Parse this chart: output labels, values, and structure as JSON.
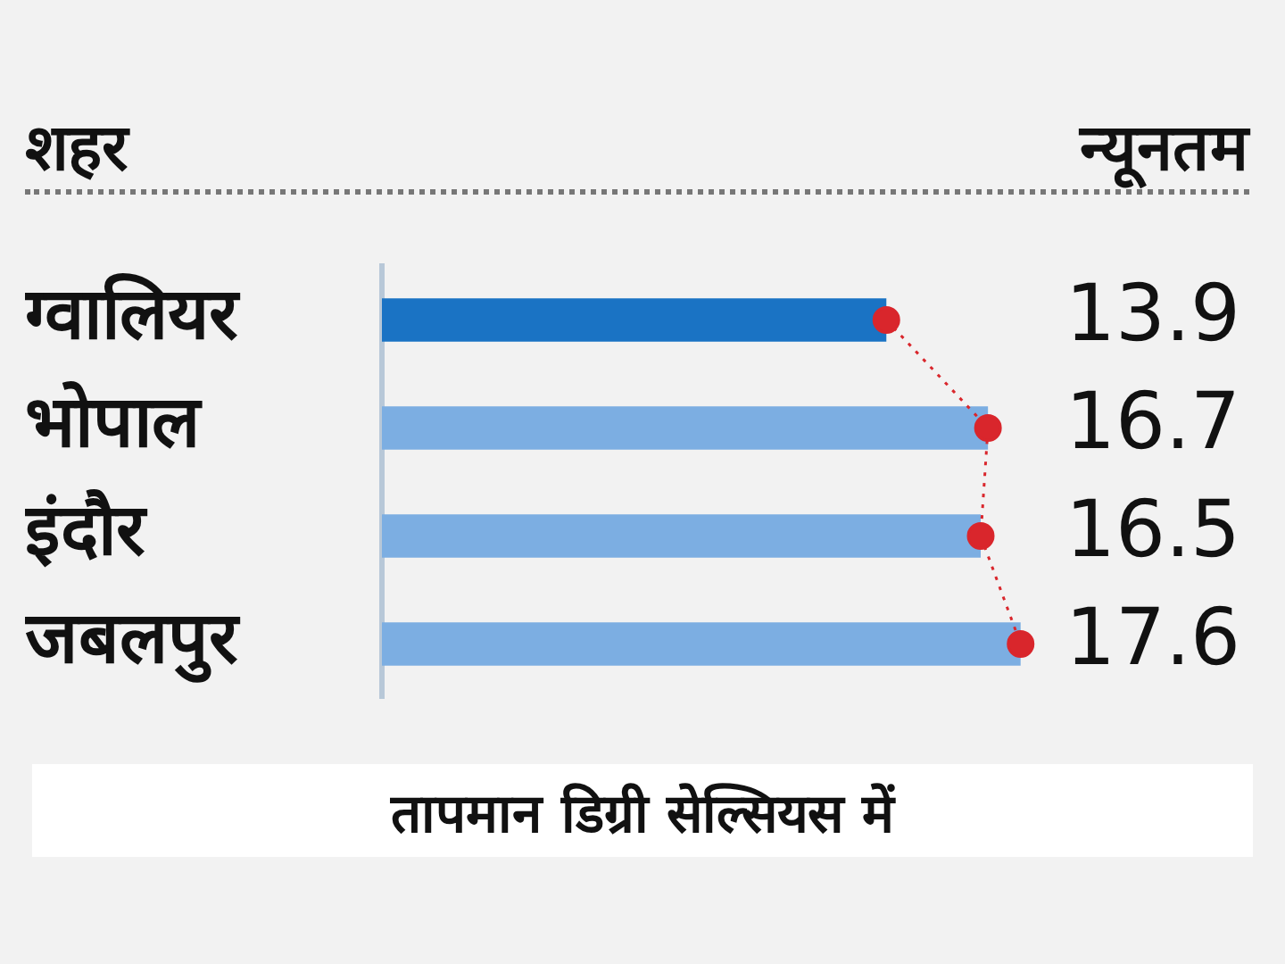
{
  "chart_data": {
    "type": "bar",
    "orientation": "horizontal",
    "ylabel": "शहर",
    "xlabel": "तापमान डिग्री सेल्सियस में",
    "annotations": [
      "न्यूनतम"
    ],
    "categories": [
      "ग्वालियर",
      "भोपाल",
      "इंदौर",
      "जबलपुर"
    ],
    "series": [
      {
        "colors": [
          "#1a73c4",
          "#7caee2",
          "#7caee2",
          "#7caee2"
        ],
        "values": [
          13.9,
          16.7,
          16.5,
          17.6
        ],
        "value_labels": [
          "13.9",
          "16.7",
          "16.5",
          "17.6"
        ]
      },
      {
        "type": "line",
        "color": "#d9262c",
        "marker": "circle",
        "line_style": "dotted",
        "values": [
          13.9,
          16.7,
          16.5,
          17.6
        ]
      }
    ],
    "grid": false,
    "legend": false
  }
}
